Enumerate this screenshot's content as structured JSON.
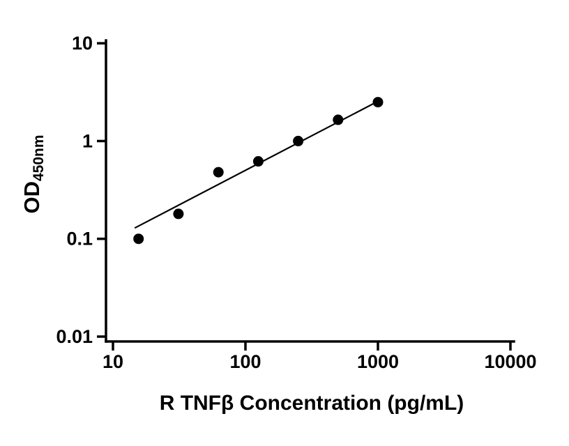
{
  "figure": {
    "background": "#ffffff"
  },
  "chart_data": {
    "type": "scatter",
    "title": "",
    "xlabel": "R TNFβ Concentration (pg/mL)",
    "ylabel": "OD",
    "ylabel_sub": "450nm",
    "x_scale": "log10",
    "y_scale": "log10",
    "xlim": [
      10,
      10000
    ],
    "ylim": [
      0.01,
      10
    ],
    "x_ticks": [
      10,
      100,
      1000,
      10000
    ],
    "x_tick_labels": [
      "10",
      "100",
      "1000",
      "10000"
    ],
    "y_ticks": [
      0.01,
      0.1,
      1,
      10
    ],
    "y_tick_labels": [
      "0.01",
      "0.1",
      "1",
      "10"
    ],
    "grid": false,
    "legend": "none",
    "marker_color": "#000000",
    "axis_color": "#000000",
    "series": [
      {
        "name": "fit-line",
        "type": "line",
        "color": "#000000",
        "points": [
          {
            "x": 14.6,
            "y": 0.129
          },
          {
            "x": 1000,
            "y": 2.55
          }
        ]
      },
      {
        "name": "standard-curve-points",
        "type": "scatter",
        "marker": "filled-circle",
        "color": "#000000",
        "points": [
          {
            "x": 15.6,
            "y": 0.1
          },
          {
            "x": 31.2,
            "y": 0.18
          },
          {
            "x": 62.5,
            "y": 0.48
          },
          {
            "x": 125,
            "y": 0.62
          },
          {
            "x": 250,
            "y": 1.0
          },
          {
            "x": 500,
            "y": 1.65
          },
          {
            "x": 1000,
            "y": 2.5
          }
        ]
      }
    ]
  }
}
